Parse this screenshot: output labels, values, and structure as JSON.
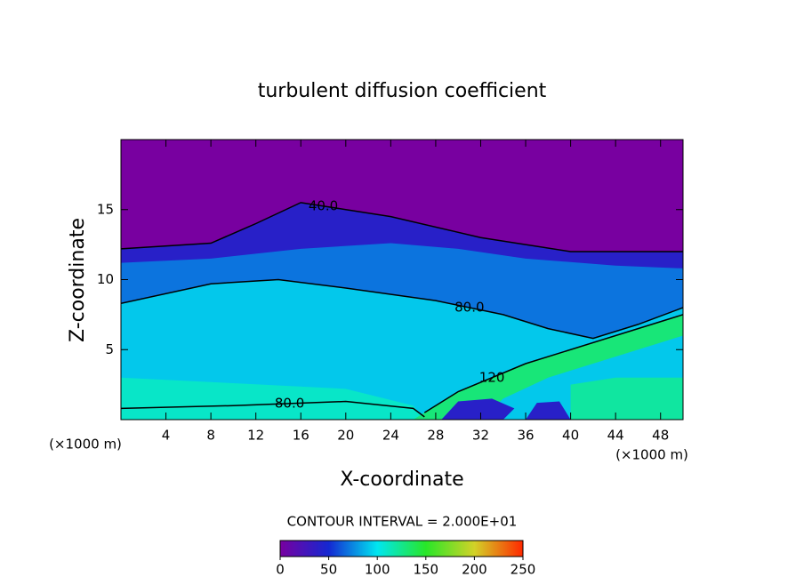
{
  "chart_data": {
    "type": "contour",
    "title": "turbulent diffusion coefficient",
    "xlabel": "X-coordinate",
    "ylabel": "Z-coordinate",
    "xunit_left": "(×1000 m)",
    "xunit_right": "(×1000 m)",
    "xlim": [
      0,
      50
    ],
    "ylim": [
      0,
      20
    ],
    "xticks": [
      4,
      8,
      12,
      16,
      20,
      24,
      28,
      32,
      36,
      40,
      44,
      48
    ],
    "yticks": [
      5,
      10,
      15
    ],
    "colormap": [
      "#7800a0",
      "#1428d2",
      "#00e6f0",
      "#28e628",
      "#d2d228",
      "#ff2800"
    ],
    "clim": [
      0,
      250
    ],
    "cticks": [
      0,
      50,
      100,
      150,
      200,
      250
    ],
    "contour_note": "CONTOUR INTERVAL = 2.000E+01",
    "regions": [
      {
        "value": 0,
        "x": [
          0,
          50,
          50,
          0
        ],
        "y": [
          20,
          20,
          0,
          0
        ]
      },
      {
        "value": 40,
        "x": [
          0,
          8,
          12,
          16,
          20,
          24,
          32,
          40,
          50,
          50,
          0
        ],
        "y": [
          12.2,
          12.6,
          14,
          15.5,
          15,
          14.5,
          13,
          12,
          12,
          0,
          0
        ]
      },
      {
        "value": 70,
        "x": [
          0,
          8,
          16,
          24,
          30,
          36,
          44,
          50,
          50,
          0
        ],
        "y": [
          11.2,
          11.5,
          12.2,
          12.6,
          12.2,
          11.5,
          11,
          10.8,
          0,
          0
        ]
      },
      {
        "value": 92,
        "x": [
          0,
          8,
          14,
          20,
          28,
          34,
          38,
          42,
          46,
          50,
          50,
          0
        ],
        "y": [
          8.3,
          9.7,
          10,
          9.4,
          8.5,
          7.5,
          6.5,
          5.8,
          6.8,
          8,
          0,
          0
        ]
      },
      {
        "value": 110,
        "x": [
          0,
          10,
          20,
          26,
          27,
          0
        ],
        "y": [
          3,
          2.6,
          2.2,
          1,
          0,
          0
        ]
      },
      {
        "value": 130,
        "x": [
          26,
          30,
          36,
          44,
          50,
          50,
          44,
          38,
          34,
          32
        ],
        "y": [
          0,
          2,
          4,
          6,
          7.5,
          6,
          4.5,
          3,
          1.5,
          0
        ]
      },
      {
        "value": 120,
        "x": [
          40,
          44,
          50,
          50,
          40
        ],
        "y": [
          2.5,
          3,
          3,
          0,
          0
        ]
      },
      {
        "value": 40,
        "x": [
          28.5,
          30,
          33,
          35,
          34,
          28.5
        ],
        "y": [
          0,
          1.3,
          1.5,
          0.8,
          0,
          0
        ]
      },
      {
        "value": 40,
        "x": [
          36,
          37,
          39,
          40,
          36
        ],
        "y": [
          0,
          1.2,
          1.3,
          0,
          0
        ]
      }
    ],
    "contours": [
      {
        "label": "40.0",
        "x": [
          0,
          8,
          12,
          16,
          20,
          24,
          32,
          40,
          50
        ],
        "y": [
          12.2,
          12.6,
          14,
          15.5,
          15,
          14.5,
          13,
          12,
          12
        ]
      },
      {
        "label": "80.0",
        "x": [
          0,
          8,
          14,
          20,
          28,
          34,
          38,
          42,
          46,
          50
        ],
        "y": [
          8.3,
          9.7,
          10,
          9.4,
          8.5,
          7.5,
          6.5,
          5.8,
          6.8,
          8
        ]
      },
      {
        "label": "120",
        "x": [
          27,
          30,
          36,
          44,
          50
        ],
        "y": [
          0.5,
          2,
          4,
          6,
          7.5
        ]
      },
      {
        "label": "80.0",
        "x": [
          0,
          10,
          20,
          26,
          27
        ],
        "y": [
          0.8,
          1,
          1.3,
          0.8,
          0.2
        ]
      }
    ]
  }
}
